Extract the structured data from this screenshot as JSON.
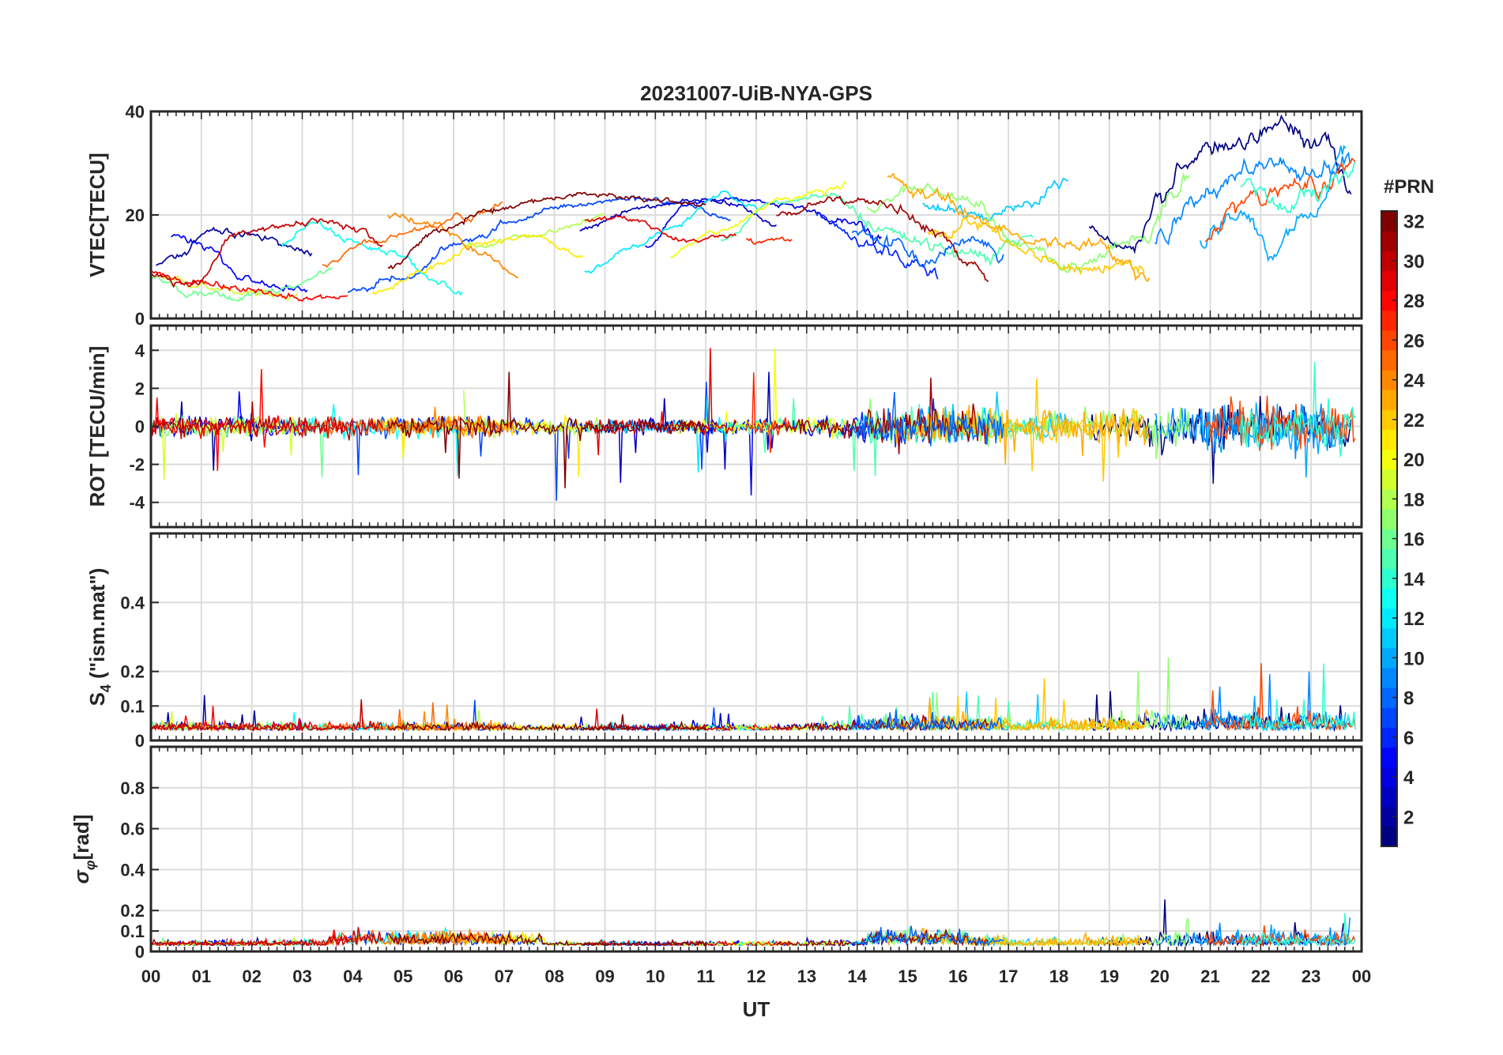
{
  "chart_data": {
    "type": "line",
    "title": "20231007-UiB-NYA-GPS",
    "xlabel": "UT",
    "x_ticks": [
      "00",
      "01",
      "02",
      "03",
      "04",
      "05",
      "06",
      "07",
      "08",
      "09",
      "10",
      "11",
      "12",
      "13",
      "14",
      "15",
      "16",
      "17",
      "18",
      "19",
      "20",
      "21",
      "22",
      "23",
      "00"
    ],
    "xlim": [
      0,
      24
    ],
    "panels": [
      {
        "id": "vtec",
        "ylabel": "VTEC[TECU]",
        "ylim": [
          0,
          40
        ],
        "yticks": [
          "0",
          "20",
          "40"
        ],
        "ytick_values": [
          0,
          20,
          40
        ],
        "typical_range": [
          4,
          37
        ]
      },
      {
        "id": "rot",
        "ylabel": "ROT [TECU/min]",
        "ylim": [
          -5.3,
          5.3
        ],
        "yticks": [
          "-4",
          "-2",
          "0",
          "2",
          "4"
        ],
        "ytick_values": [
          -4,
          -2,
          0,
          2,
          4
        ],
        "typical_range": [
          -5.3,
          5.3
        ]
      },
      {
        "id": "s4",
        "ylabel": "S4 (\"ism.mat\")",
        "ylabel_main": "S",
        "ylabel_sub": "4",
        "ylabel_rest": " (\"ism.mat\")",
        "ylim": [
          0,
          0.6
        ],
        "yticks": [
          "0",
          "0.1",
          "0.2",
          "0.4"
        ],
        "ytick_values": [
          0,
          0.1,
          0.2,
          0.4
        ],
        "typical_range": [
          0,
          0.24
        ]
      },
      {
        "id": "sigphi",
        "ylabel": "σφ[rad]",
        "ylabel_main": "σ",
        "ylabel_sub": "φ",
        "ylabel_rest": "[rad]",
        "ylim": [
          0,
          1
        ],
        "yticks": [
          "0",
          "0.1",
          "0.2",
          "0.4",
          "0.6",
          "0.8"
        ],
        "ytick_values": [
          0,
          0.1,
          0.2,
          0.4,
          0.6,
          0.8
        ],
        "typical_range": [
          0,
          0.49
        ]
      }
    ],
    "colorbar": {
      "label": "#PRN",
      "range": [
        1,
        32
      ],
      "ticks": [
        "2",
        "4",
        "6",
        "8",
        "10",
        "12",
        "14",
        "16",
        "18",
        "20",
        "22",
        "24",
        "26",
        "28",
        "30",
        "32"
      ],
      "tick_values": [
        2,
        4,
        6,
        8,
        10,
        12,
        14,
        16,
        18,
        20,
        22,
        24,
        26,
        28,
        30,
        32
      ],
      "colormap": "jet",
      "colors": [
        "#00008f",
        "#0000ff",
        "#0080ff",
        "#00ffff",
        "#80ff80",
        "#ffff00",
        "#ff8000",
        "#ff0000",
        "#800000"
      ]
    },
    "series": [
      {
        "prn": 2,
        "vtec": [
          [
            0.1,
            10
          ],
          [
            0.5,
            12
          ],
          [
            1.2,
            17
          ],
          [
            2,
            16
          ],
          [
            2.8,
            14
          ],
          [
            3.2,
            12
          ]
        ]
      },
      {
        "prn": 5,
        "vtec": [
          [
            0.4,
            16
          ],
          [
            1,
            14
          ],
          [
            1.8,
            8
          ],
          [
            2.5,
            6
          ],
          [
            3.1,
            5
          ]
        ]
      },
      {
        "prn": 7,
        "vtec": [
          [
            3.9,
            5
          ],
          [
            5,
            8
          ],
          [
            6.2,
            15
          ],
          [
            7.3,
            19
          ],
          [
            8.2,
            22
          ],
          [
            9.5,
            23
          ],
          [
            10.6,
            22
          ],
          [
            11.5,
            19
          ]
        ]
      },
      {
        "prn": 3,
        "vtec": [
          [
            8.5,
            17
          ],
          [
            9.6,
            21
          ],
          [
            10.8,
            23
          ],
          [
            11.6,
            22
          ],
          [
            12.4,
            18
          ]
        ]
      },
      {
        "prn": 4,
        "vtec": [
          [
            9.8,
            14
          ],
          [
            10.6,
            22
          ],
          [
            11.3,
            23
          ],
          [
            12.6,
            22
          ],
          [
            13.7,
            19
          ],
          [
            14.5,
            15
          ]
        ]
      },
      {
        "prn": 6,
        "vtec": [
          [
            13.2,
            20
          ],
          [
            14.1,
            15
          ],
          [
            15.1,
            11
          ],
          [
            15.6,
            9
          ]
        ]
      },
      {
        "prn": 1,
        "vtec": [
          [
            18.6,
            18
          ],
          [
            19.4,
            13
          ],
          [
            20,
            24
          ],
          [
            20.8,
            33
          ],
          [
            21.7,
            34
          ],
          [
            22.4,
            37
          ],
          [
            23.3,
            34
          ],
          [
            23.8,
            24
          ]
        ]
      },
      {
        "prn": 9,
        "vtec": [
          [
            19.9,
            15
          ],
          [
            20.6,
            22
          ],
          [
            21.4,
            26
          ],
          [
            22.2,
            31
          ],
          [
            23,
            28
          ],
          [
            23.8,
            30
          ]
        ]
      },
      {
        "prn": 11,
        "vtec": [
          [
            15.3,
            22
          ],
          [
            16.4,
            20
          ],
          [
            17.4,
            22
          ],
          [
            18.2,
            27
          ]
        ]
      },
      {
        "prn": 12,
        "vtec": [
          [
            8.6,
            9
          ],
          [
            9.6,
            14
          ],
          [
            10.4,
            18
          ],
          [
            11.3,
            24
          ],
          [
            12.1,
            21
          ]
        ]
      },
      {
        "prn": 13,
        "vtec": [
          [
            2.6,
            14
          ],
          [
            3.2,
            19
          ],
          [
            3.9,
            15
          ],
          [
            4.8,
            13
          ],
          [
            5.7,
            7
          ],
          [
            6.2,
            5
          ]
        ]
      },
      {
        "prn": 10,
        "vtec": [
          [
            20.8,
            15
          ],
          [
            21.7,
            20
          ],
          [
            22.2,
            13
          ],
          [
            23,
            20
          ],
          [
            23.7,
            32
          ]
        ]
      },
      {
        "prn": 15,
        "vtec": [
          [
            11.3,
            15
          ],
          [
            12.3,
            22
          ],
          [
            13.4,
            24
          ],
          [
            14.4,
            18
          ],
          [
            15.5,
            14
          ],
          [
            16.6,
            12
          ],
          [
            17.5,
            16
          ]
        ]
      },
      {
        "prn": 16,
        "vtec": [
          [
            0,
            8
          ],
          [
            0.8,
            5
          ],
          [
            1.6,
            4
          ],
          [
            2.6,
            6
          ],
          [
            3.6,
            9
          ]
        ]
      },
      {
        "prn": 17,
        "vtec": [
          [
            14.2,
            21
          ],
          [
            15.2,
            26
          ],
          [
            16.3,
            22
          ],
          [
            17.3,
            14
          ],
          [
            18.4,
            10
          ],
          [
            19.6,
            16
          ],
          [
            20.6,
            28
          ]
        ]
      },
      {
        "prn": 18,
        "vtec": [
          [
            6.2,
            14
          ],
          [
            7.5,
            16
          ],
          [
            8.4,
            18
          ],
          [
            9,
            20
          ]
        ]
      },
      {
        "prn": 19,
        "vtec": [
          [
            0.2,
            8
          ],
          [
            1.2,
            6
          ],
          [
            2.1,
            5
          ],
          [
            2.9,
            4
          ]
        ]
      },
      {
        "prn": 20,
        "vtec": [
          [
            10.3,
            12
          ],
          [
            11.2,
            17
          ],
          [
            12.6,
            23
          ],
          [
            13.8,
            26
          ]
        ]
      },
      {
        "prn": 21,
        "vtec": [
          [
            4.4,
            5
          ],
          [
            5.6,
            10
          ],
          [
            6.6,
            15
          ],
          [
            7.6,
            16
          ],
          [
            8.6,
            12
          ]
        ]
      },
      {
        "prn": 22,
        "vtec": [
          [
            15.4,
            16
          ],
          [
            16.3,
            18
          ],
          [
            17.3,
            13
          ],
          [
            18.3,
            9
          ],
          [
            19.2,
            10
          ],
          [
            19.7,
            9
          ]
        ]
      },
      {
        "prn": 23,
        "vtec": [
          [
            14.6,
            27
          ],
          [
            15.5,
            24
          ],
          [
            16.6,
            18
          ],
          [
            17.5,
            15
          ],
          [
            18.6,
            14
          ],
          [
            19.3,
            11
          ],
          [
            19.8,
            8
          ]
        ]
      },
      {
        "prn": 24,
        "vtec": [
          [
            4.7,
            20
          ],
          [
            5.6,
            18
          ],
          [
            6.5,
            13
          ],
          [
            7.3,
            8
          ]
        ]
      },
      {
        "prn": 25,
        "vtec": [
          [
            3.4,
            10
          ],
          [
            4.3,
            15
          ],
          [
            5.3,
            17
          ],
          [
            6.3,
            20
          ],
          [
            7,
            22
          ]
        ]
      },
      {
        "prn": 26,
        "vtec": [
          [
            20.9,
            16
          ],
          [
            21.6,
            22
          ],
          [
            22.5,
            24
          ],
          [
            23.2,
            26
          ],
          [
            23.9,
            30
          ]
        ]
      },
      {
        "prn": 27,
        "vtec": [
          [
            11.8,
            15
          ],
          [
            12.7,
            15
          ]
        ]
      },
      {
        "prn": 28,
        "vtec": [
          [
            0,
            9
          ],
          [
            0.8,
            7
          ],
          [
            1.6,
            6
          ],
          [
            2.4,
            5
          ],
          [
            3.2,
            4
          ],
          [
            3.9,
            4
          ]
        ]
      },
      {
        "prn": 29,
        "vtec": [
          [
            8.6,
            19
          ],
          [
            9.6,
            19
          ],
          [
            10.6,
            15
          ],
          [
            11.6,
            16
          ]
        ]
      },
      {
        "prn": 30,
        "vtec": [
          [
            0,
            8
          ],
          [
            0.9,
            7
          ],
          [
            1.7,
            17
          ],
          [
            2.6,
            18
          ],
          [
            3.5,
            19
          ],
          [
            4.1,
            17
          ],
          [
            4.6,
            14
          ]
        ]
      },
      {
        "prn": 31,
        "vtec": [
          [
            12.4,
            20
          ],
          [
            13.6,
            23
          ],
          [
            14.6,
            21
          ],
          [
            15.6,
            17
          ],
          [
            16.2,
            11
          ],
          [
            16.6,
            8
          ]
        ]
      },
      {
        "prn": 32,
        "vtec": [
          [
            4.7,
            10
          ],
          [
            5.7,
            17
          ],
          [
            6.7,
            21
          ],
          [
            7.8,
            23
          ],
          [
            8.7,
            24
          ],
          [
            9.9,
            23
          ],
          [
            11,
            22
          ]
        ]
      },
      {
        "prn": 8,
        "vtec": [
          [
            13.9,
            17
          ],
          [
            14.7,
            14
          ],
          [
            15.4,
            11
          ],
          [
            16.2,
            15
          ],
          [
            16.9,
            12
          ]
        ]
      },
      {
        "prn": 14,
        "vtec": [
          [
            21.6,
            25
          ],
          [
            22.4,
            21
          ],
          [
            23.2,
            26
          ],
          [
            23.9,
            29
          ]
        ]
      }
    ]
  }
}
